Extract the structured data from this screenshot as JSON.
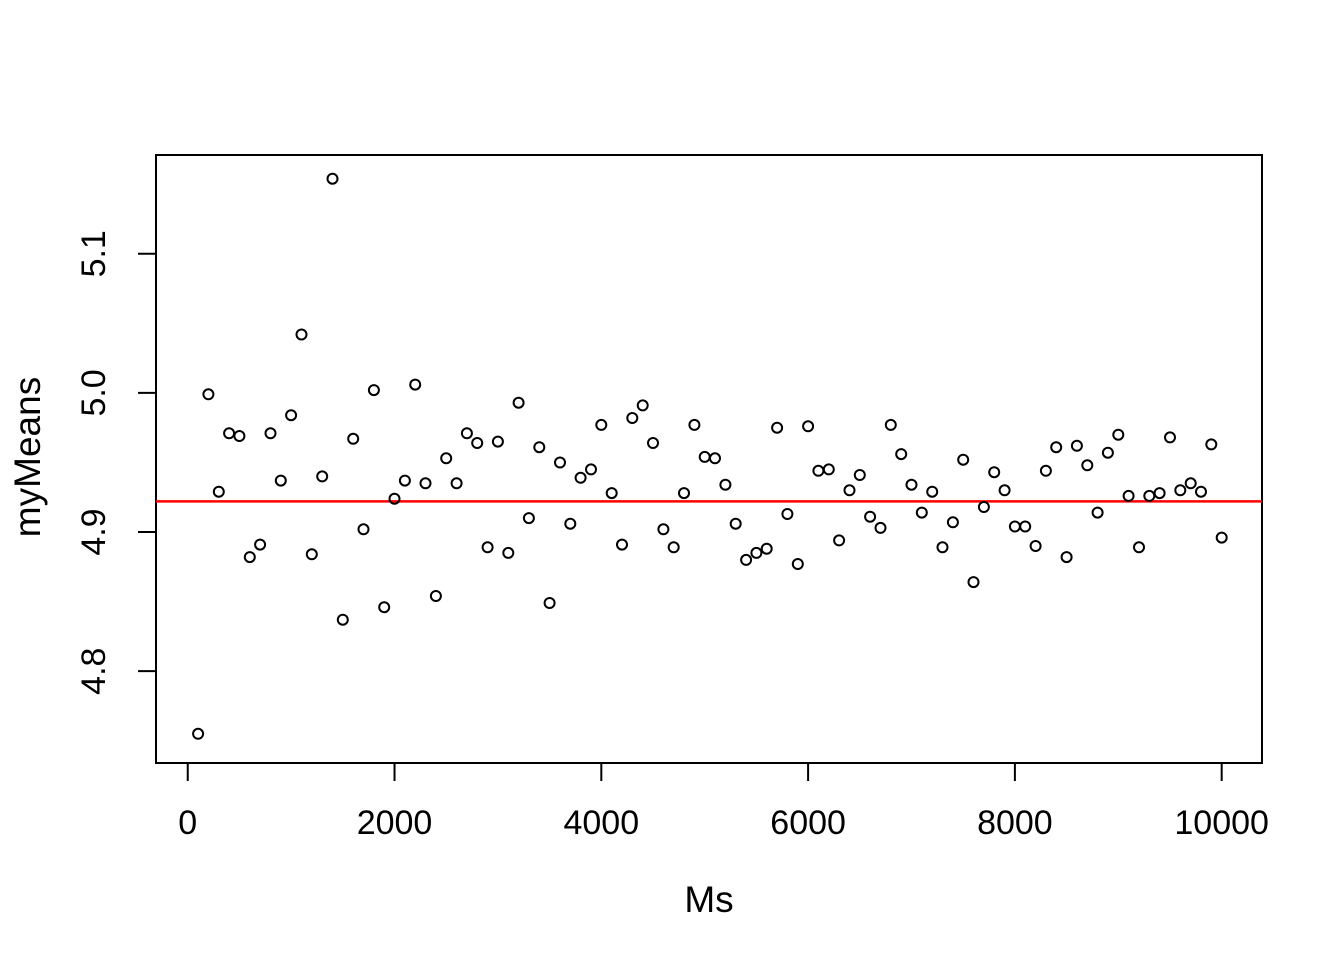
{
  "chart_data": {
    "type": "scatter",
    "title": "",
    "xlabel": "Ms",
    "ylabel": "myMeans",
    "x_ticks": [
      0,
      2000,
      4000,
      6000,
      8000,
      10000
    ],
    "y_ticks": [
      4.8,
      4.9,
      5.0,
      5.1
    ],
    "xlim": [
      -307,
      10390
    ],
    "ylim": [
      4.734,
      5.171
    ],
    "grid": false,
    "legend": "none",
    "mean_line": {
      "value": 4.922,
      "color": "#ff0000"
    },
    "point_style": {
      "shape": "open-circle",
      "radius_px": 5,
      "stroke": "#000000",
      "fill": "none"
    },
    "points": {
      "x": [
        100,
        200,
        300,
        400,
        500,
        600,
        700,
        800,
        900,
        1000,
        1100,
        1200,
        1300,
        1400,
        1500,
        1600,
        1700,
        1800,
        1900,
        2000,
        2100,
        2200,
        2300,
        2400,
        2500,
        2600,
        2700,
        2800,
        2900,
        3000,
        3100,
        3200,
        3300,
        3400,
        3500,
        3600,
        3700,
        3800,
        3900,
        4000,
        4100,
        4200,
        4300,
        4400,
        4500,
        4600,
        4700,
        4800,
        4900,
        5000,
        5100,
        5200,
        5300,
        5400,
        5500,
        5600,
        5700,
        5800,
        5900,
        6000,
        6100,
        6200,
        6300,
        6400,
        6500,
        6600,
        6700,
        6800,
        6900,
        7000,
        7100,
        7200,
        7300,
        7400,
        7500,
        7600,
        7700,
        7800,
        7900,
        8000,
        8100,
        8200,
        8300,
        8400,
        8500,
        8600,
        8700,
        8800,
        8900,
        9000,
        9100,
        9200,
        9300,
        9400,
        9500,
        9600,
        9700,
        9800,
        9900,
        10000
      ],
      "y": [
        4.755,
        4.999,
        4.929,
        4.971,
        4.969,
        4.882,
        4.891,
        4.971,
        4.937,
        4.984,
        5.042,
        4.884,
        4.94,
        5.154,
        4.837,
        4.967,
        4.902,
        5.002,
        4.846,
        4.924,
        4.937,
        5.006,
        4.935,
        4.854,
        4.953,
        4.935,
        4.971,
        4.964,
        4.889,
        4.965,
        4.885,
        4.993,
        4.91,
        4.961,
        4.849,
        4.95,
        4.906,
        4.939,
        4.945,
        4.977,
        4.928,
        4.891,
        4.982,
        4.991,
        4.964,
        4.902,
        4.889,
        4.928,
        4.977,
        4.954,
        4.953,
        4.934,
        4.906,
        4.88,
        4.885,
        4.888,
        4.975,
        4.913,
        4.877,
        4.976,
        4.944,
        4.945,
        4.894,
        4.93,
        4.941,
        4.911,
        4.903,
        4.977,
        4.956,
        4.934,
        4.914,
        4.929,
        4.889,
        4.907,
        4.952,
        4.864,
        4.918,
        4.943,
        4.93,
        4.904,
        4.904,
        4.89,
        4.944,
        4.961,
        4.882,
        4.962,
        4.948,
        4.914,
        4.957,
        4.97,
        4.926,
        4.889,
        4.926,
        4.928,
        4.968,
        4.93,
        4.935,
        4.929,
        4.963,
        4.896
      ]
    }
  },
  "colors": {
    "background": "#ffffff",
    "axis": "#000000",
    "point_stroke": "#000000",
    "mean_line": "#ff0000"
  }
}
